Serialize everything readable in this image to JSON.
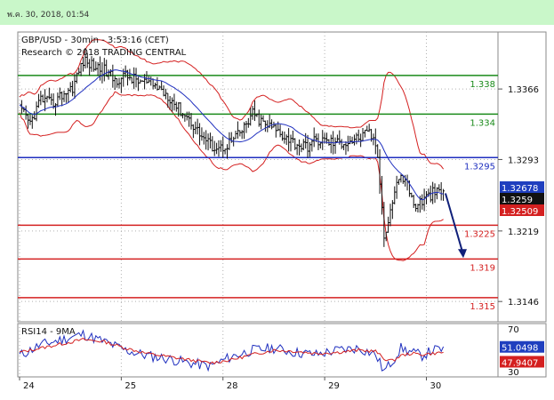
{
  "header": {
    "timestamp": "พ.ค. 30, 2018, 01:54"
  },
  "chart_data": [
    {
      "type": "line",
      "title": "GBP/USD - 30min - 3:53:16 (CET)",
      "subtitle": "Research © 2018 TRADING CENTRAL",
      "ylim": [
        1.3125,
        1.3425
      ],
      "y_ticks": [
        {
          "value": 1.3366,
          "label": "1.3366"
        },
        {
          "value": 1.3293,
          "label": "1.3293"
        },
        {
          "value": 1.3219,
          "label": "1.3219"
        },
        {
          "value": 1.3146,
          "label": "1.3146"
        }
      ],
      "x_ticks": [
        {
          "index": 0,
          "label": "24"
        },
        {
          "index": 48,
          "label": "25"
        },
        {
          "index": 96,
          "label": "28"
        },
        {
          "index": 144,
          "label": "29"
        },
        {
          "index": 192,
          "label": "30"
        }
      ],
      "levels": [
        {
          "label": "1.338",
          "value": 1.338,
          "color": "#1a8a1a",
          "x_start": 0
        },
        {
          "label": "1.334",
          "value": 1.334,
          "color": "#1a8a1a",
          "x_start": 0
        },
        {
          "label": "1.3295",
          "value": 1.3295,
          "color": "#1f2fbf",
          "x_start": 0
        },
        {
          "label": "1.3225",
          "value": 1.3225,
          "color": "#d42020",
          "x_start": 0
        },
        {
          "label": "1.319",
          "value": 1.319,
          "color": "#d42020",
          "x_start": 0
        },
        {
          "label": "1.315",
          "value": 1.315,
          "color": "#d42020",
          "x_start": 0
        }
      ],
      "price_badges": [
        {
          "label": "1.32678",
          "value": 1.32678,
          "color": "#1f3fbf"
        },
        {
          "label": "1.3259",
          "value": 1.3259,
          "color": "#111111"
        },
        {
          "label": "1.32509",
          "value": 1.32509,
          "color": "#d42020"
        }
      ],
      "price_series": {
        "name": "",
        "anchors": [
          [
            0,
            1.3345
          ],
          [
            5,
            1.333
          ],
          [
            10,
            1.3356
          ],
          [
            15,
            1.335
          ],
          [
            20,
            1.336
          ],
          [
            25,
            1.3368
          ],
          [
            30,
            1.3395
          ],
          [
            35,
            1.339
          ],
          [
            40,
            1.3385
          ],
          [
            45,
            1.3375
          ],
          [
            50,
            1.338
          ],
          [
            55,
            1.3375
          ],
          [
            60,
            1.3372
          ],
          [
            65,
            1.3368
          ],
          [
            70,
            1.336
          ],
          [
            75,
            1.3346
          ],
          [
            80,
            1.3335
          ],
          [
            85,
            1.332
          ],
          [
            90,
            1.3308
          ],
          [
            95,
            1.3305
          ],
          [
            100,
            1.3312
          ],
          [
            105,
            1.3322
          ],
          [
            110,
            1.334
          ],
          [
            115,
            1.333
          ],
          [
            120,
            1.3325
          ],
          [
            125,
            1.3318
          ],
          [
            130,
            1.331
          ],
          [
            135,
            1.3306
          ],
          [
            140,
            1.3313
          ],
          [
            145,
            1.3312
          ],
          [
            150,
            1.331
          ],
          [
            155,
            1.3312
          ],
          [
            160,
            1.3315
          ],
          [
            165,
            1.332
          ],
          [
            168,
            1.331
          ],
          [
            170,
            1.327
          ],
          [
            172,
            1.3215
          ],
          [
            175,
            1.324
          ],
          [
            178,
            1.327
          ],
          [
            182,
            1.3275
          ],
          [
            186,
            1.3245
          ],
          [
            190,
            1.325
          ],
          [
            195,
            1.3258
          ],
          [
            200,
            1.3259
          ]
        ]
      },
      "projection": {
        "from": [
          201,
          1.3258
        ],
        "to": [
          209,
          1.3192
        ],
        "color": "#10207a"
      },
      "x_count": 210
    },
    {
      "type": "line",
      "title": "RSI14 - 9MA",
      "ylim": [
        25,
        75
      ],
      "y_ticks": [
        {
          "value": 70,
          "label": "70"
        },
        {
          "value": 30,
          "label": "30"
        }
      ],
      "badges": [
        {
          "label": "51.0498",
          "value": 51.0498,
          "color": "#1f3fbf"
        },
        {
          "label": "47.9407",
          "value": 47.9407,
          "color": "#d42020"
        }
      ],
      "series": [
        {
          "name": "RSI14",
          "color": "#1f2fbf",
          "anchors": [
            [
              0,
              45
            ],
            [
              10,
              55
            ],
            [
              20,
              60
            ],
            [
              30,
              65
            ],
            [
              40,
              58
            ],
            [
              50,
              50
            ],
            [
              60,
              45
            ],
            [
              70,
              42
            ],
            [
              80,
              38
            ],
            [
              90,
              35
            ],
            [
              100,
              44
            ],
            [
              110,
              50
            ],
            [
              120,
              52
            ],
            [
              130,
              48
            ],
            [
              140,
              46
            ],
            [
              150,
              50
            ],
            [
              160,
              52
            ],
            [
              168,
              46
            ],
            [
              172,
              30
            ],
            [
              176,
              40
            ],
            [
              180,
              52
            ],
            [
              185,
              48
            ],
            [
              190,
              45
            ],
            [
              195,
              50
            ],
            [
              200,
              51
            ]
          ]
        },
        {
          "name": "9MA",
          "color": "#d42020",
          "anchors": [
            [
              0,
              48
            ],
            [
              10,
              52
            ],
            [
              20,
              56
            ],
            [
              30,
              60
            ],
            [
              40,
              58
            ],
            [
              50,
              52
            ],
            [
              60,
              47
            ],
            [
              70,
              44
            ],
            [
              80,
              41
            ],
            [
              90,
              38
            ],
            [
              100,
              41
            ],
            [
              110,
              46
            ],
            [
              120,
              50
            ],
            [
              130,
              49
            ],
            [
              140,
              47
            ],
            [
              150,
              48
            ],
            [
              160,
              50
            ],
            [
              168,
              49
            ],
            [
              172,
              42
            ],
            [
              176,
              40
            ],
            [
              180,
              45
            ],
            [
              185,
              47
            ],
            [
              190,
              46
            ],
            [
              195,
              47
            ],
            [
              200,
              48
            ]
          ]
        }
      ]
    }
  ]
}
